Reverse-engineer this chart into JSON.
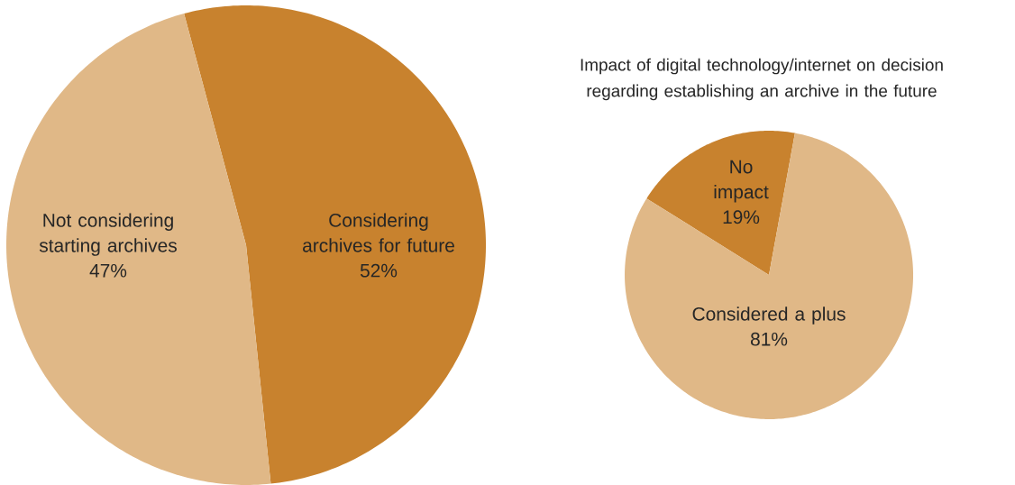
{
  "chart_data": [
    {
      "type": "pie",
      "categories": [
        "Considering archives for future",
        "Not considering starting archives"
      ],
      "values": [
        52,
        47
      ],
      "colors": [
        "#c8822e",
        "#e0b887"
      ],
      "value_labels": [
        "52%",
        "47%"
      ]
    },
    {
      "type": "pie",
      "title": "Impact of digital technology/internet on decision regarding establishing an archive in the future",
      "categories": [
        "No impact",
        "Considered a plus"
      ],
      "values": [
        19,
        81
      ],
      "colors": [
        "#c8822e",
        "#e0b887"
      ],
      "value_labels": [
        "19%",
        "81%"
      ]
    }
  ]
}
